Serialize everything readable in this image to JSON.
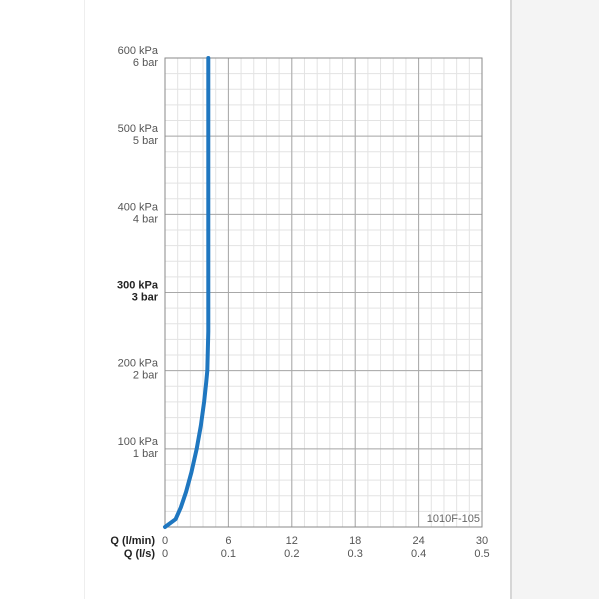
{
  "chart_data": {
    "type": "line",
    "code": "1010F-105",
    "y_ticks": [
      {
        "value": 100,
        "kpa": "100 kPa",
        "bar": "1 bar",
        "bold": false
      },
      {
        "value": 200,
        "kpa": "200 kPa",
        "bar": "2 bar",
        "bold": false
      },
      {
        "value": 300,
        "kpa": "300 kPa",
        "bar": "3 bar",
        "bold": true
      },
      {
        "value": 400,
        "kpa": "400 kPa",
        "bar": "4 bar",
        "bold": false
      },
      {
        "value": 500,
        "kpa": "500 kPa",
        "bar": "5 bar",
        "bold": false
      },
      {
        "value": 600,
        "kpa": "600 kPa",
        "bar": "6 bar",
        "bold": false
      }
    ],
    "ylim": [
      0,
      600
    ],
    "xlim": [
      0,
      30
    ],
    "x_axis_lmin": {
      "label": "Q (l/min)",
      "ticks": [
        "0",
        "6",
        "12",
        "18",
        "24",
        "30"
      ]
    },
    "x_axis_ls": {
      "label": "Q (l/s)",
      "ticks": [
        "0",
        "0.1",
        "0.2",
        "0.3",
        "0.4",
        "0.5"
      ]
    },
    "grid": true,
    "line_color": "#1f77c0",
    "series": [
      {
        "x": [
          0,
          1,
          1.5,
          2,
          2.5,
          3,
          3.4,
          3.7,
          3.9,
          4.0,
          4.1,
          4.1,
          4.1,
          4.1,
          4.1
        ],
        "y": [
          0,
          10,
          25,
          45,
          70,
          100,
          130,
          160,
          185,
          200,
          250,
          300,
          400,
          500,
          600
        ]
      }
    ]
  }
}
